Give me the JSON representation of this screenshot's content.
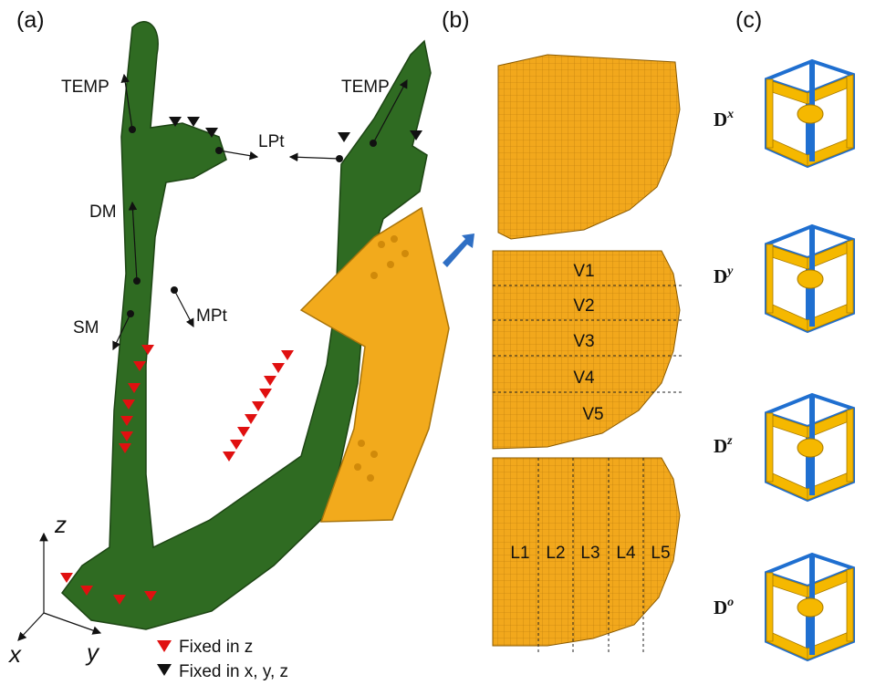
{
  "panel_labels": [
    "(a)",
    "(b)",
    "(c)"
  ],
  "jaw_labels": [
    "TEMP",
    "TEMP",
    "LPt",
    "DM",
    "SM",
    "MPt"
  ],
  "axes": [
    "z",
    "x",
    "y"
  ],
  "legend": [
    "Fixed in z",
    "Fixed in x, y, z"
  ],
  "volume_labels": [
    "V1",
    "V2",
    "V3",
    "V4",
    "V5"
  ],
  "layer_labels": [
    "L1",
    "L2",
    "L3",
    "L4",
    "L5"
  ],
  "cells": [
    {
      "base": "D",
      "sup": "x"
    },
    {
      "base": "D",
      "sup": "y"
    },
    {
      "base": "D",
      "sup": "z"
    },
    {
      "base": "D",
      "sup": "o"
    }
  ]
}
